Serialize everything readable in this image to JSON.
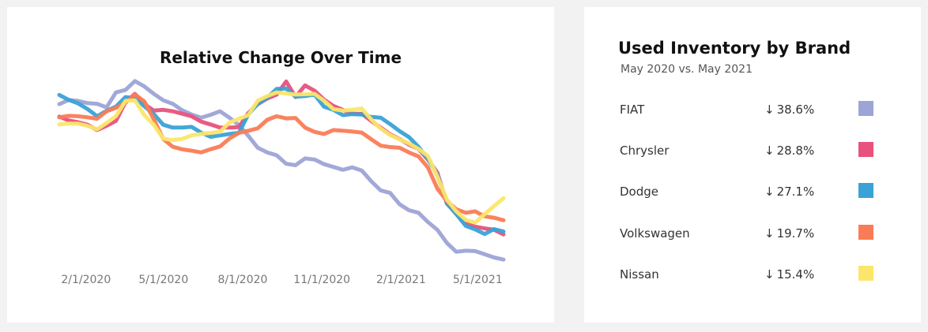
{
  "chart_data": {
    "type": "line",
    "title": "Relative Change Over Time",
    "x_tick_labels": [
      "2/1/2020",
      "5/1/2020",
      "8/1/2020",
      "11/1/2020",
      "2/1/2021",
      "5/1/2021"
    ],
    "x_start": "2020-01-01",
    "x_end": "2021-05-31",
    "ylim": [
      -0.45,
      0.15
    ],
    "grid": false,
    "series": [
      {
        "name": "FIAT",
        "color": "#9da4d6",
        "values": [
          0.032,
          0.044,
          0.041,
          0.035,
          0.033,
          0.023,
          0.065,
          0.072,
          0.097,
          0.082,
          0.061,
          0.043,
          0.033,
          0.015,
          0.003,
          -0.006,
          0.002,
          0.012,
          -0.006,
          -0.027,
          -0.057,
          -0.091,
          -0.104,
          -0.112,
          -0.136,
          -0.14,
          -0.121,
          -0.124,
          -0.137,
          -0.145,
          -0.153,
          -0.146,
          -0.155,
          -0.185,
          -0.211,
          -0.218,
          -0.25,
          -0.267,
          -0.274,
          -0.3,
          -0.322,
          -0.359,
          -0.384,
          -0.381,
          -0.382,
          -0.391,
          -0.4,
          -0.406
        ]
      },
      {
        "name": "Chrysler",
        "color": "#e8527c",
        "values": [
          -0.003,
          -0.014,
          -0.019,
          -0.026,
          -0.041,
          -0.029,
          -0.015,
          0.037,
          0.061,
          0.032,
          0.014,
          0.016,
          0.012,
          0.005,
          -0.002,
          -0.017,
          -0.025,
          -0.034,
          -0.034,
          -0.033,
          0.007,
          0.032,
          0.048,
          0.059,
          0.096,
          0.052,
          0.085,
          0.07,
          0.045,
          0.027,
          0.016,
          0.005,
          0.005,
          -0.015,
          -0.034,
          -0.053,
          -0.066,
          -0.082,
          -0.094,
          -0.124,
          -0.161,
          -0.248,
          -0.276,
          -0.302,
          -0.313,
          -0.318,
          -0.322,
          -0.335
        ]
      },
      {
        "name": "Dodge",
        "color": "#3aa2d6",
        "values": [
          0.058,
          0.044,
          0.034,
          0.018,
          -0.002,
          0.013,
          0.025,
          0.052,
          0.049,
          0.026,
          0.004,
          -0.026,
          -0.034,
          -0.034,
          -0.032,
          -0.048,
          -0.06,
          -0.056,
          -0.052,
          -0.049,
          0.003,
          0.033,
          0.05,
          0.075,
          0.076,
          0.053,
          0.055,
          0.059,
          0.025,
          0.016,
          0.001,
          0.004,
          0.003,
          -0.004,
          -0.006,
          -0.024,
          -0.044,
          -0.061,
          -0.088,
          -0.122,
          -0.167,
          -0.247,
          -0.278,
          -0.311,
          -0.321,
          -0.334,
          -0.32,
          -0.327
        ]
      },
      {
        "name": "Volkswagen",
        "color": "#fa7c56",
        "values": [
          -0.005,
          -0.001,
          -0.002,
          -0.005,
          -0.009,
          0.012,
          0.022,
          0.036,
          0.059,
          0.04,
          -0.011,
          -0.066,
          -0.088,
          -0.095,
          -0.099,
          -0.104,
          -0.095,
          -0.087,
          -0.065,
          -0.049,
          -0.043,
          -0.036,
          -0.012,
          -0.002,
          -0.008,
          -0.007,
          -0.034,
          -0.046,
          -0.052,
          -0.041,
          -0.043,
          -0.045,
          -0.048,
          -0.067,
          -0.085,
          -0.089,
          -0.091,
          -0.104,
          -0.115,
          -0.146,
          -0.206,
          -0.241,
          -0.264,
          -0.274,
          -0.27,
          -0.284,
          -0.288,
          -0.295
        ]
      },
      {
        "name": "Nissan",
        "color": "#fbe66a",
        "values": [
          -0.025,
          -0.023,
          -0.023,
          -0.029,
          -0.039,
          -0.021,
          -0.002,
          0.041,
          0.043,
          0.001,
          -0.026,
          -0.065,
          -0.069,
          -0.066,
          -0.056,
          -0.052,
          -0.049,
          -0.046,
          -0.02,
          -0.009,
          0.001,
          0.042,
          0.055,
          0.065,
          0.062,
          0.059,
          0.06,
          0.061,
          0.042,
          0.018,
          0.014,
          0.016,
          0.02,
          -0.011,
          -0.037,
          -0.055,
          -0.067,
          -0.079,
          -0.094,
          -0.114,
          -0.172,
          -0.237,
          -0.27,
          -0.294,
          -0.302,
          -0.278,
          -0.255,
          -0.233
        ]
      }
    ]
  },
  "legend": {
    "title": "Used Inventory by Brand",
    "subtitle": "May 2020 vs. May 2021",
    "arrow_glyph": "↓",
    "rows": [
      {
        "brand": "FIAT",
        "change": "38.6%",
        "color": "#9da4d6"
      },
      {
        "brand": "Chrysler",
        "change": "28.8%",
        "color": "#e8527c"
      },
      {
        "brand": "Dodge",
        "change": "27.1%",
        "color": "#3aa2d6"
      },
      {
        "brand": "Volkswagen",
        "change": "19.7%",
        "color": "#fa7c56"
      },
      {
        "brand": "Nissan",
        "change": "15.4%",
        "color": "#fbe66a"
      }
    ]
  }
}
